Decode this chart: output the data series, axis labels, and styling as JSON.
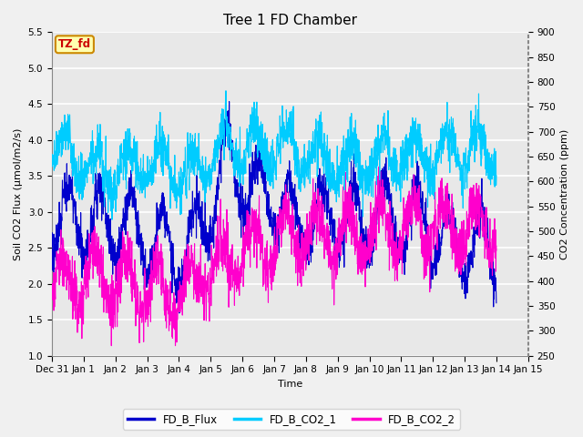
{
  "title": "Tree 1 FD Chamber",
  "xlabel": "Time",
  "ylabel_left": "Soil CO2 Flux (μmol/m2/s)",
  "ylabel_right": "CO2 Concentration (ppm)",
  "ylim_left": [
    1.0,
    5.5
  ],
  "ylim_right": [
    250,
    900
  ],
  "yticks_left": [
    1.0,
    1.5,
    2.0,
    2.5,
    3.0,
    3.5,
    4.0,
    4.5,
    5.0,
    5.5
  ],
  "yticks_right": [
    250,
    300,
    350,
    400,
    450,
    500,
    550,
    600,
    650,
    700,
    750,
    800,
    850,
    900
  ],
  "legend_entries": [
    "FD_B_Flux",
    "FD_B_CO2_1",
    "FD_B_CO2_2"
  ],
  "colors": {
    "FD_B_Flux": "#0000CC",
    "FD_B_CO2_1": "#00CCFF",
    "FD_B_CO2_2": "#FF00CC"
  },
  "annotation_text": "TZ_fd",
  "annotation_color": "#CC0000",
  "annotation_bg": "#FFFFB0",
  "annotation_edge": "#CC8800",
  "n_points": 2016,
  "seed": 7,
  "background_color": "#F0F0F0",
  "plot_bg": "#E8E8E8",
  "grid_color": "#FFFFFF",
  "title_fontsize": 11,
  "label_fontsize": 8,
  "tick_fontsize": 7.5
}
